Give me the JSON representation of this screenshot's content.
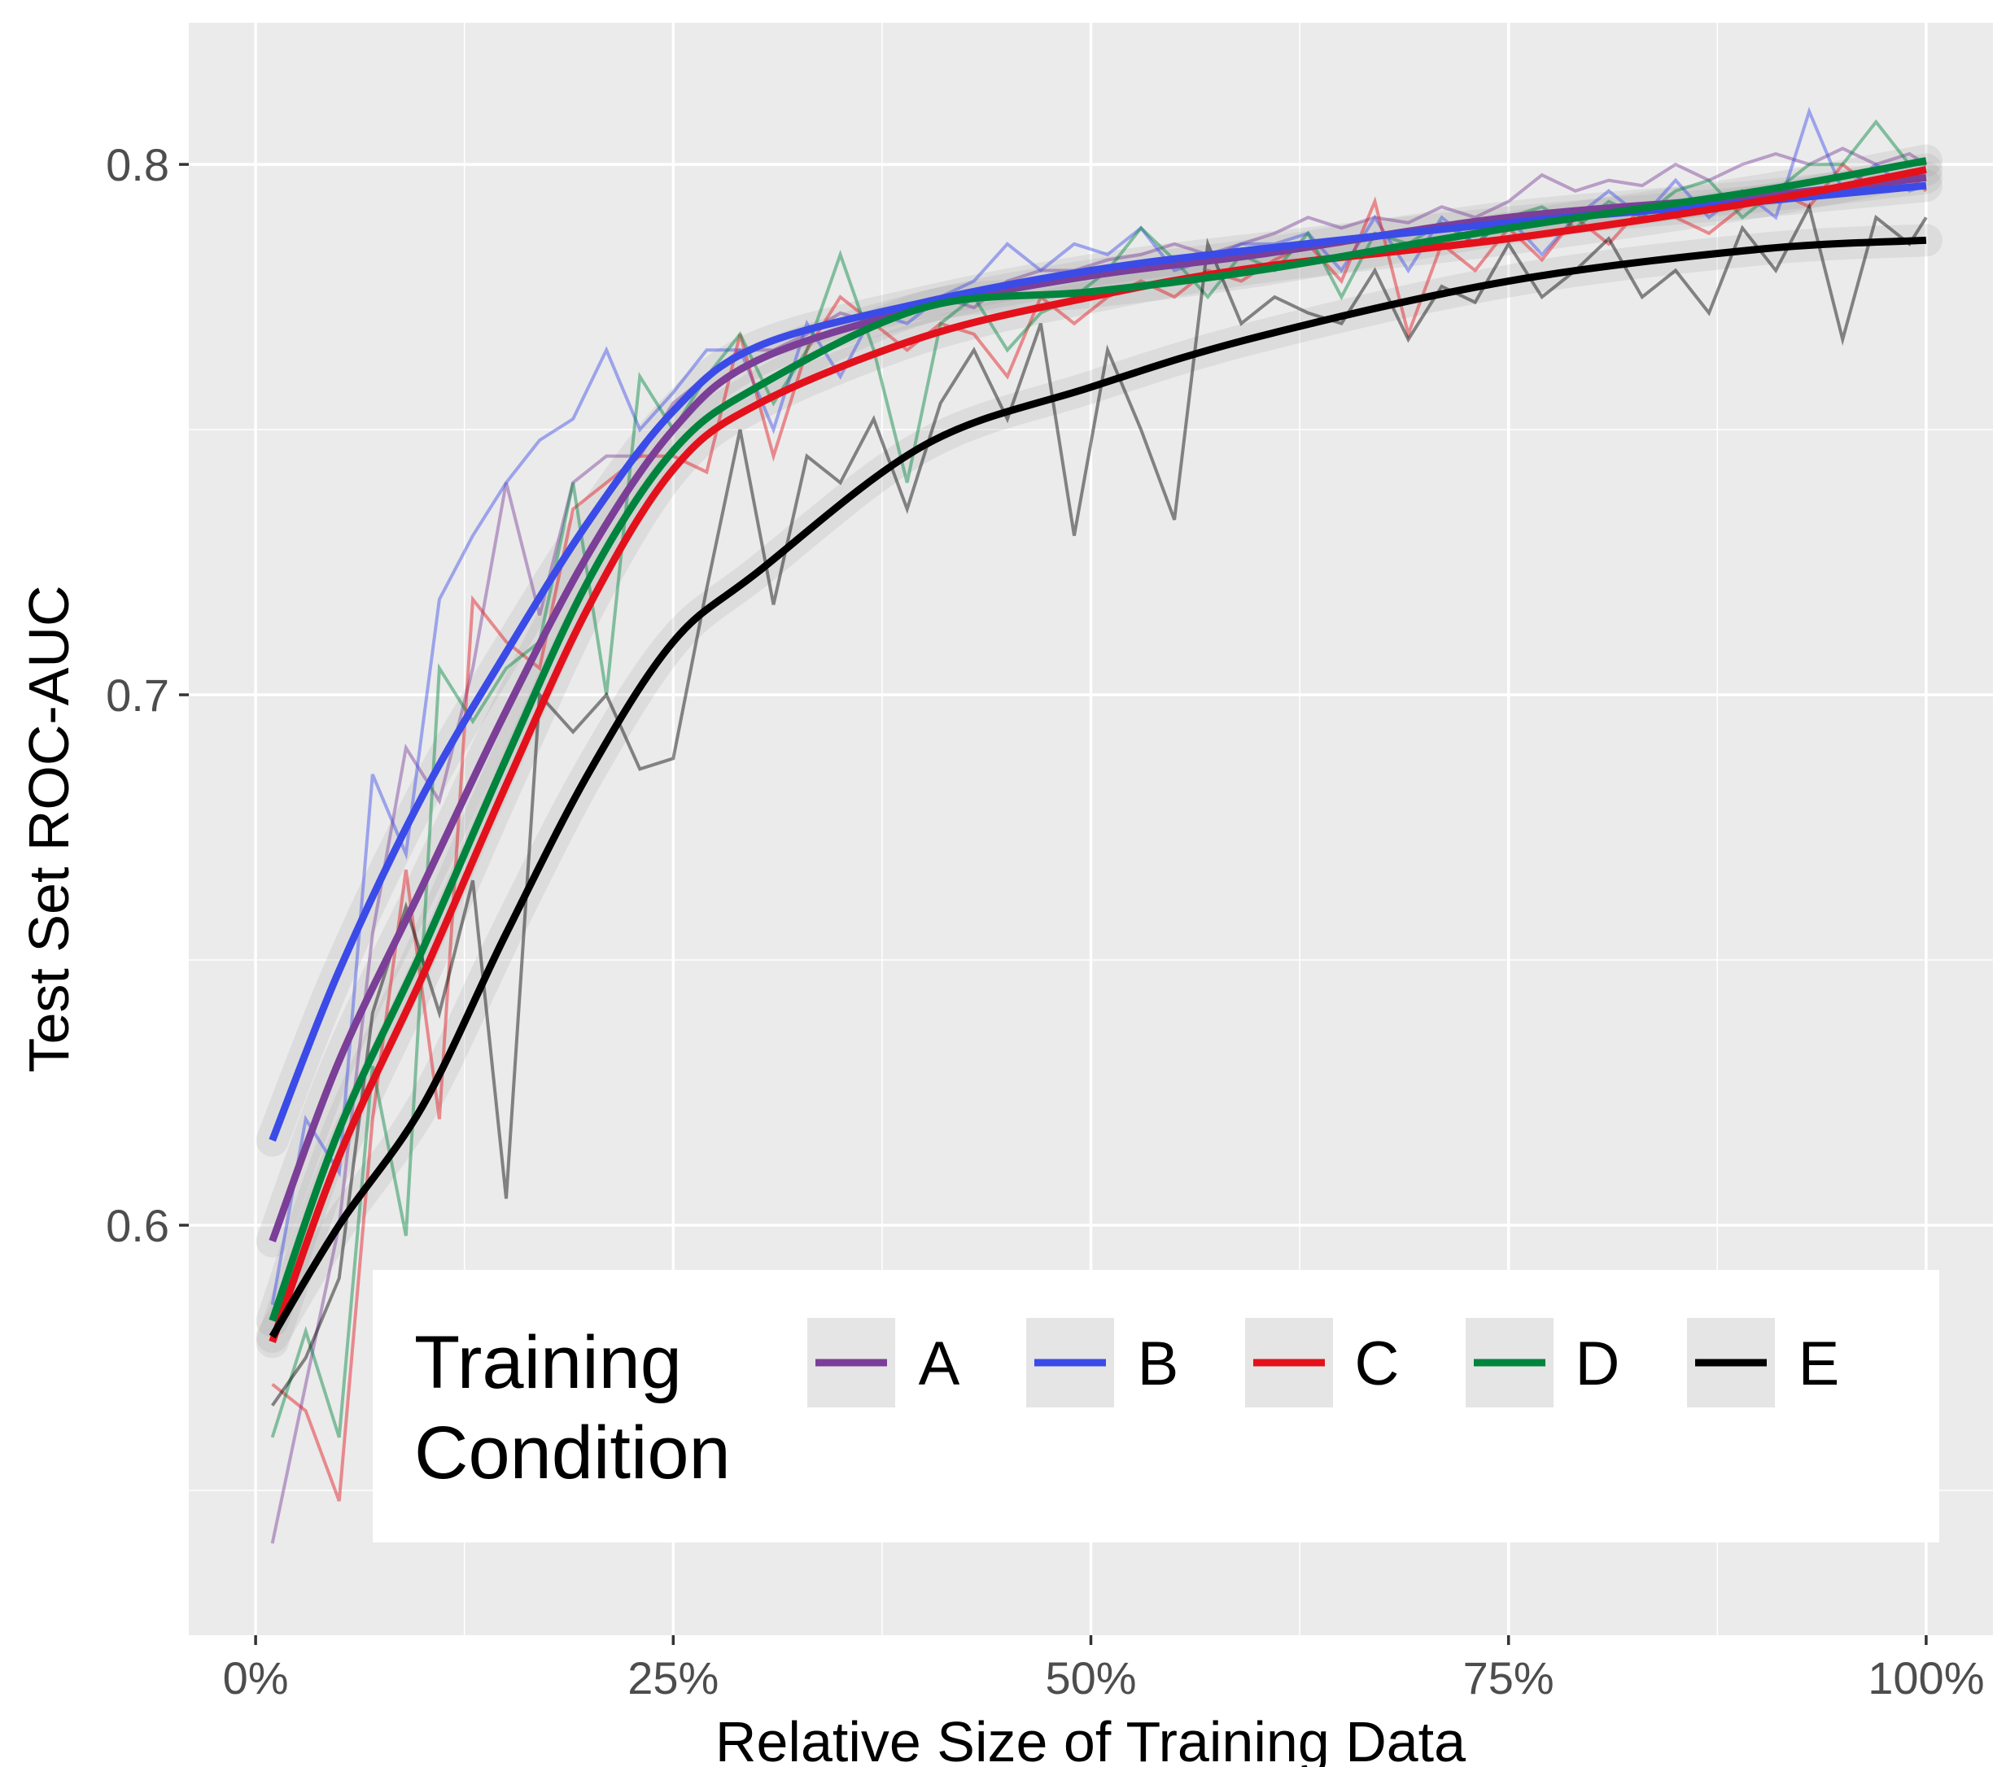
{
  "chart_data": {
    "type": "line",
    "xlabel": "Relative Size of Training Data",
    "ylabel": "Test Set ROC-AUC",
    "xlim": [
      -4,
      104
    ],
    "ylim": [
      0.5227,
      0.8267
    ],
    "x_ticks": [
      0,
      25,
      50,
      75,
      100
    ],
    "x_tick_labels": [
      "0%",
      "25%",
      "50%",
      "75%",
      "100%"
    ],
    "y_ticks": [
      0.6,
      0.7,
      0.8
    ],
    "y_tick_labels": [
      "0.6",
      "0.7",
      "0.8"
    ],
    "y_minor_grid": [
      0.55,
      0.65,
      0.75
    ],
    "x_minor_grid": [
      12.5,
      37.5,
      62.5,
      87.5
    ],
    "grid": true,
    "background": "#EBEBEB",
    "legend": {
      "title": "Training Condition",
      "placement": "bottom-inside"
    },
    "raw_x": [
      1,
      3,
      5,
      7,
      9,
      11,
      13,
      15,
      17,
      19,
      21,
      23,
      25,
      27,
      29,
      31,
      33,
      35,
      37,
      39,
      41,
      43,
      45,
      47,
      49,
      51,
      53,
      55,
      57,
      59,
      61,
      63,
      65,
      67,
      69,
      71,
      73,
      75,
      77,
      79,
      81,
      83,
      85,
      87,
      89,
      91,
      93,
      95,
      97,
      99,
      100
    ],
    "smooth_x": [
      1,
      5,
      10,
      15,
      20,
      25,
      30,
      40,
      50,
      60,
      75,
      90,
      100
    ],
    "series": [
      {
        "name": "A",
        "color": "#7B3F98",
        "raw": [
          0.54,
          0.57,
          0.6,
          0.655,
          0.69,
          0.68,
          0.705,
          0.74,
          0.715,
          0.74,
          0.745,
          0.745,
          0.755,
          0.76,
          0.765,
          0.765,
          0.768,
          0.772,
          0.77,
          0.772,
          0.775,
          0.773,
          0.778,
          0.78,
          0.78,
          0.782,
          0.783,
          0.785,
          0.783,
          0.785,
          0.787,
          0.79,
          0.788,
          0.79,
          0.789,
          0.792,
          0.79,
          0.793,
          0.798,
          0.795,
          0.797,
          0.796,
          0.8,
          0.797,
          0.8,
          0.802,
          0.8,
          0.803,
          0.8,
          0.802,
          0.8
        ],
        "smooth": [
          0.597,
          0.631,
          0.664,
          0.697,
          0.727,
          0.75,
          0.763,
          0.773,
          0.779,
          0.783,
          0.79,
          0.794,
          0.7975
        ]
      },
      {
        "name": "B",
        "color": "#3B4BE8",
        "raw": [
          0.585,
          0.62,
          0.61,
          0.685,
          0.67,
          0.718,
          0.73,
          0.74,
          0.748,
          0.752,
          0.765,
          0.75,
          0.757,
          0.765,
          0.765,
          0.75,
          0.77,
          0.76,
          0.772,
          0.77,
          0.775,
          0.778,
          0.785,
          0.78,
          0.785,
          0.783,
          0.788,
          0.78,
          0.782,
          0.785,
          0.785,
          0.787,
          0.78,
          0.79,
          0.78,
          0.79,
          0.785,
          0.79,
          0.783,
          0.79,
          0.795,
          0.79,
          0.797,
          0.79,
          0.795,
          0.79,
          0.81,
          0.795,
          0.8,
          0.795,
          0.796
        ],
        "smooth": [
          0.616,
          0.648,
          0.681,
          0.708,
          0.733,
          0.7535,
          0.7656,
          0.774,
          0.78,
          0.784,
          0.789,
          0.793,
          0.796
        ]
      },
      {
        "name": "C",
        "color": "#E3111B",
        "raw": [
          0.57,
          0.565,
          0.548,
          0.62,
          0.667,
          0.62,
          0.718,
          0.71,
          0.705,
          0.735,
          0.74,
          0.745,
          0.745,
          0.742,
          0.768,
          0.745,
          0.765,
          0.775,
          0.77,
          0.765,
          0.77,
          0.768,
          0.76,
          0.775,
          0.77,
          0.775,
          0.778,
          0.775,
          0.78,
          0.778,
          0.782,
          0.785,
          0.778,
          0.793,
          0.768,
          0.785,
          0.78,
          0.788,
          0.782,
          0.79,
          0.785,
          0.792,
          0.79,
          0.787,
          0.792,
          0.795,
          0.792,
          0.8,
          0.795,
          0.798,
          0.795
        ],
        "smooth": [
          0.578,
          0.613,
          0.647,
          0.683,
          0.717,
          0.7425,
          0.7547,
          0.7675,
          0.775,
          0.7806,
          0.786,
          0.793,
          0.799
        ]
      },
      {
        "name": "D",
        "color": "#00843D",
        "raw": [
          0.56,
          0.58,
          0.56,
          0.63,
          0.598,
          0.705,
          0.695,
          0.705,
          0.71,
          0.74,
          0.7,
          0.76,
          0.75,
          0.76,
          0.768,
          0.755,
          0.765,
          0.783,
          0.765,
          0.74,
          0.77,
          0.775,
          0.765,
          0.772,
          0.775,
          0.78,
          0.788,
          0.782,
          0.775,
          0.783,
          0.78,
          0.787,
          0.775,
          0.787,
          0.785,
          0.789,
          0.785,
          0.79,
          0.792,
          0.788,
          0.793,
          0.79,
          0.795,
          0.797,
          0.79,
          0.795,
          0.8,
          0.8,
          0.808,
          0.8,
          0.8
        ],
        "smooth": [
          0.582,
          0.618,
          0.652,
          0.688,
          0.722,
          0.746,
          0.758,
          0.773,
          0.776,
          0.78,
          0.788,
          0.795,
          0.8007
        ]
      },
      {
        "name": "E",
        "color": "#000000",
        "raw": [
          0.566,
          0.575,
          0.59,
          0.64,
          0.66,
          0.64,
          0.665,
          0.605,
          0.7,
          0.693,
          0.7,
          0.686,
          0.688,
          0.72,
          0.75,
          0.717,
          0.745,
          0.74,
          0.752,
          0.735,
          0.755,
          0.765,
          0.752,
          0.77,
          0.73,
          0.765,
          0.75,
          0.733,
          0.785,
          0.77,
          0.775,
          0.772,
          0.77,
          0.78,
          0.767,
          0.777,
          0.774,
          0.785,
          0.775,
          0.78,
          0.786,
          0.775,
          0.78,
          0.772,
          0.788,
          0.78,
          0.792,
          0.767,
          0.79,
          0.785,
          0.79
        ],
        "smooth": [
          0.579,
          0.6,
          0.6225,
          0.655,
          0.6856,
          0.71,
          0.723,
          0.747,
          0.758,
          0.7675,
          0.778,
          0.784,
          0.7857
        ]
      }
    ]
  }
}
